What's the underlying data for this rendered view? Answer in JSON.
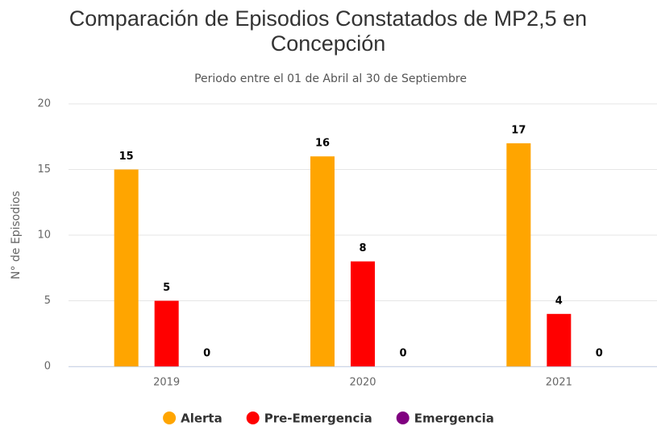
{
  "chart_data": {
    "type": "bar",
    "title": "Comparación de Episodios Constatados de MP2,5 en Concepción",
    "subtitle": "Periodo entre el 01 de Abril al 30 de Septiembre",
    "y_label": "N° de Episodios",
    "categories": [
      "2019",
      "2020",
      "2021"
    ],
    "series": [
      {
        "name": "Alerta",
        "color": "#FFA500",
        "values": [
          15,
          16,
          17
        ]
      },
      {
        "name": "Pre-Emergencia",
        "color": "#FF0000",
        "values": [
          5,
          8,
          4
        ]
      },
      {
        "name": "Emergencia",
        "color": "#800080",
        "values": [
          0,
          0,
          0
        ]
      }
    ],
    "ylim": [
      0,
      20
    ],
    "yticks": [
      0,
      5,
      10,
      15,
      20
    ],
    "grid": true,
    "legend": "bottom"
  }
}
